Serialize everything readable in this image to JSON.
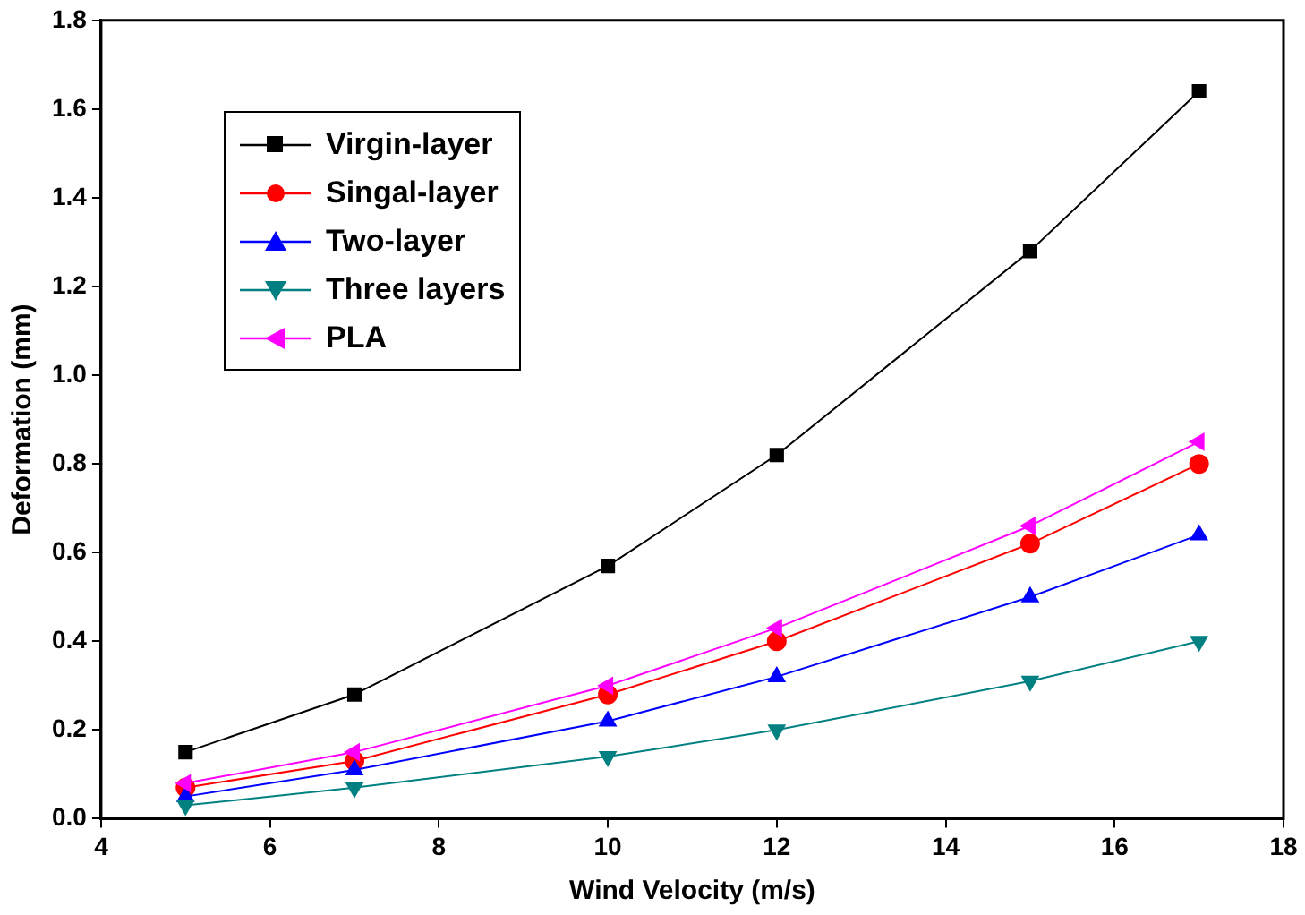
{
  "chart_data": {
    "type": "line",
    "xlabel": "Wind Velocity (m/s)",
    "ylabel": "Deformation (mm)",
    "x": [
      5,
      7,
      10,
      12,
      15,
      17
    ],
    "xlim": [
      4,
      18
    ],
    "xticks": [
      4,
      6,
      8,
      10,
      12,
      14,
      16,
      18
    ],
    "ylim": [
      0,
      1.8
    ],
    "yticks": [
      {
        "value": 0,
        "label": "0.0"
      },
      0.2,
      0.4,
      0.6,
      0.8,
      {
        "value": 1,
        "label": "1.0"
      },
      1.2,
      1.4,
      1.6,
      1.8
    ],
    "grid": false,
    "legend": "top left",
    "line_style": "solid",
    "series": [
      {
        "name": "Virgin-layer",
        "color": "#000000",
        "marker": "square",
        "values": [
          0.15,
          0.28,
          0.57,
          0.82,
          1.28,
          1.64
        ]
      },
      {
        "name": "Singal-layer",
        "color": "#ff0000",
        "marker": "circle",
        "values": [
          0.07,
          0.13,
          0.28,
          0.4,
          0.62,
          0.8
        ]
      },
      {
        "name": "Two-layer",
        "color": "#0000ff",
        "marker": "triangle",
        "values": [
          0.05,
          0.11,
          0.22,
          0.32,
          0.5,
          0.64
        ]
      },
      {
        "name": "Three layers",
        "color": "#008080",
        "marker": "triangle-down",
        "values": [
          0.03,
          0.07,
          0.14,
          0.2,
          0.31,
          0.4
        ]
      },
      {
        "name": "PLA",
        "color": "#ff00ff",
        "marker": "triangle-left",
        "values": [
          0.08,
          0.15,
          0.3,
          0.43,
          0.66,
          0.85
        ]
      }
    ]
  }
}
